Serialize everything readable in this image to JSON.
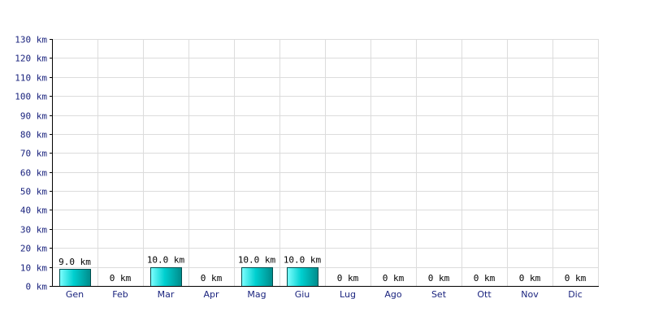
{
  "chart_data": {
    "type": "bar",
    "categories": [
      "Gen",
      "Feb",
      "Mar",
      "Apr",
      "Mag",
      "Giu",
      "Lug",
      "Ago",
      "Set",
      "Ott",
      "Nov",
      "Dic"
    ],
    "values": [
      9.0,
      0,
      10.0,
      0,
      10.0,
      10.0,
      0,
      0,
      0,
      0,
      0,
      0
    ],
    "data_labels": [
      "9.0 km",
      "0 km",
      "10.0 km",
      "0 km",
      "10.0 km",
      "10.0 km",
      "0 km",
      "0 km",
      "0 km",
      "0 km",
      "0 km",
      "0 km"
    ],
    "title": "",
    "xlabel": "",
    "ylabel": "",
    "ylim": [
      0,
      130
    ],
    "ytick_values": [
      0,
      10,
      20,
      30,
      40,
      50,
      60,
      70,
      80,
      90,
      100,
      110,
      120,
      130
    ],
    "ytick_labels": [
      "0 km",
      "10 km",
      "20 km",
      "30 km",
      "40 km",
      "50 km",
      "60 km",
      "70 km",
      "80 km",
      "90 km",
      "100 km",
      "110 km",
      "120 km",
      "130 km"
    ],
    "grid": true,
    "legend": "none",
    "colors": {
      "bar_light": "#7fffff",
      "bar_mid": "#00d0d0",
      "bar_dark": "#008b8b",
      "bar_outline": "#004d4d",
      "grid": "#dcdcdc",
      "axis": "#000000",
      "tick_text": "#1a237e"
    }
  }
}
